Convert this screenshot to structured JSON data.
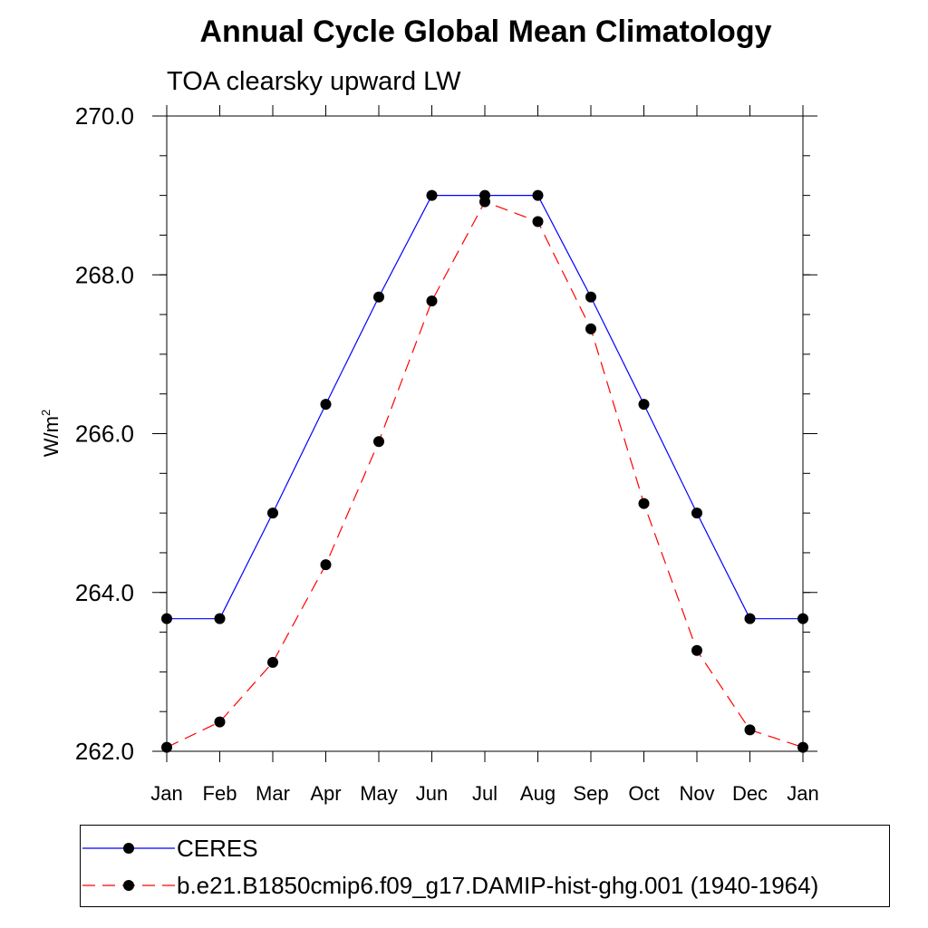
{
  "chart_data": {
    "type": "line",
    "title": "Annual Cycle Global Mean Climatology",
    "subtitle": "TOA clearsky upward LW",
    "ylabel": "W/m",
    "ylabel_sup": "2",
    "xlabel": "",
    "categories": [
      "Jan",
      "Feb",
      "Mar",
      "Apr",
      "May",
      "Jun",
      "Jul",
      "Aug",
      "Sep",
      "Oct",
      "Nov",
      "Dec",
      "Jan"
    ],
    "ylim": [
      262.0,
      270.0
    ],
    "yticks": [
      262.0,
      264.0,
      266.0,
      268.0,
      270.0
    ],
    "ytick_labels": [
      "262.0",
      "264.0",
      "266.0",
      "268.0",
      "270.0"
    ],
    "yminor_step": 0.5,
    "grid": false,
    "legend_position": "bottom",
    "series": [
      {
        "name": "CERES",
        "values": [
          263.67,
          263.67,
          265.0,
          266.37,
          267.72,
          269.0,
          269.0,
          269.0,
          267.72,
          266.37,
          265.0,
          263.67,
          263.67
        ],
        "color": "#0000ff",
        "dash": "solid",
        "marker": "circle",
        "marker_color": "#000000"
      },
      {
        "name": "b.e21.B1850cmip6.f09_g17.DAMIP-hist-ghg.001 (1940-1964)",
        "values": [
          262.05,
          262.37,
          263.12,
          264.35,
          265.9,
          267.67,
          268.92,
          268.67,
          267.32,
          265.12,
          263.27,
          262.27,
          262.05
        ],
        "color": "#ff0000",
        "dash": "dashed",
        "marker": "circle",
        "marker_color": "#000000"
      }
    ]
  }
}
